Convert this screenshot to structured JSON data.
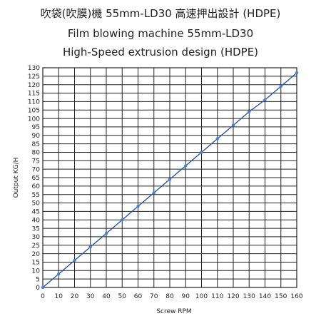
{
  "chart_data": {
    "type": "line",
    "title_lines": [
      "吹袋(吹膜)機 55mm-LD30 高速押出設計 (HDPE)",
      "Film blowing machine 55mm-LD30",
      "High-Speed extrusion design (HDPE)"
    ],
    "xlabel": "Screw RPM",
    "ylabel": "Output KG/H",
    "xlim": [
      0,
      160
    ],
    "ylim": [
      0,
      130
    ],
    "x_ticks": [
      0,
      10,
      20,
      30,
      40,
      50,
      60,
      70,
      80,
      90,
      100,
      110,
      120,
      130,
      140,
      150,
      160
    ],
    "y_ticks": [
      0,
      5,
      10,
      15,
      20,
      25,
      30,
      35,
      40,
      45,
      50,
      55,
      60,
      65,
      70,
      75,
      80,
      85,
      90,
      95,
      100,
      105,
      110,
      115,
      120,
      125,
      130
    ],
    "grid": true,
    "series": [
      {
        "x": [
          0,
          10,
          20,
          30,
          40,
          50,
          60,
          70,
          80,
          90,
          100,
          110,
          120,
          130,
          140,
          150,
          160
        ],
        "y": [
          0,
          8,
          16,
          24,
          32,
          40,
          48,
          56,
          64,
          72,
          80,
          88,
          96,
          104,
          111,
          119,
          127
        ],
        "color": "#1f4e9c",
        "marker_color": "#4a7fd0"
      }
    ]
  }
}
